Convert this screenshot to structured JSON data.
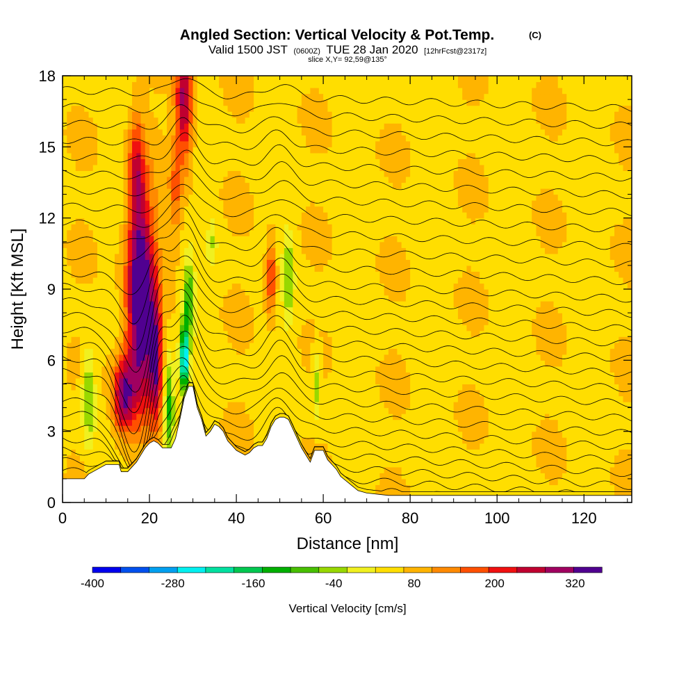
{
  "header": {
    "title_main": "Angled Section: Vertical Velocity & Pot.Temp.",
    "title_unit": "(C)",
    "valid_prefix": "Valid 1500 JST",
    "valid_zulu": "(0600Z)",
    "valid_date": "TUE 28 Jan 2020",
    "valid_fcst": "[12hrFcst@2317z]",
    "slice": "slice X,Y= 92,59@135°"
  },
  "colors": {
    "bins": [
      "#0000ee",
      "#0050ee",
      "#00a0f0",
      "#00f0f0",
      "#00e0a0",
      "#00c850",
      "#00b000",
      "#48c000",
      "#98d800",
      "#f0f020",
      "#ffde00",
      "#ffb400",
      "#ff8a00",
      "#ff5000",
      "#f01010",
      "#c00030",
      "#a00060",
      "#500090"
    ],
    "background": "#ffffff",
    "terrain": "#ffffff"
  },
  "chart_data": {
    "type": "heatmap",
    "title": "Angled Section: Vertical Velocity & Pot.Temp. (C)",
    "xlabel": "Distance [nm]",
    "ylabel": "Height [Kft MSL]",
    "xlim": [
      0,
      131
    ],
    "ylim": [
      0,
      18
    ],
    "xticks": [
      0,
      20,
      40,
      60,
      80,
      100,
      120
    ],
    "yticks": [
      0,
      3,
      6,
      9,
      12,
      15,
      18
    ],
    "colorbar": {
      "label": "Vertical Velocity [cm/s]",
      "ticks": [
        -400,
        -280,
        -160,
        -40,
        80,
        200,
        320
      ],
      "min": -400,
      "max": 360,
      "step": 40
    },
    "terrain_kft": [
      [
        0,
        1.0
      ],
      [
        5,
        1.0
      ],
      [
        6,
        1.2
      ],
      [
        7,
        1.3
      ],
      [
        9,
        1.5
      ],
      [
        10,
        1.6
      ],
      [
        13,
        1.6
      ],
      [
        13.5,
        1.3
      ],
      [
        15,
        1.3
      ],
      [
        16,
        1.5
      ],
      [
        17,
        1.7
      ],
      [
        18,
        2.0
      ],
      [
        19,
        2.3
      ],
      [
        20,
        2.5
      ],
      [
        21,
        2.6
      ],
      [
        22,
        2.5
      ],
      [
        23,
        2.3
      ],
      [
        24,
        2.3
      ],
      [
        25,
        2.3
      ],
      [
        26,
        2.7
      ],
      [
        27,
        3.5
      ],
      [
        28,
        4.4
      ],
      [
        29,
        4.9
      ],
      [
        30,
        4.9
      ],
      [
        31,
        4.0
      ],
      [
        32,
        3.5
      ],
      [
        33,
        2.8
      ],
      [
        34,
        3.0
      ],
      [
        35,
        3.3
      ],
      [
        36,
        3.2
      ],
      [
        37,
        3.0
      ],
      [
        38,
        2.6
      ],
      [
        39,
        2.4
      ],
      [
        40,
        2.2
      ],
      [
        41,
        2.1
      ],
      [
        42,
        2.0
      ],
      [
        43,
        2.1
      ],
      [
        44,
        2.3
      ],
      [
        45,
        2.4
      ],
      [
        46,
        2.4
      ],
      [
        47,
        2.7
      ],
      [
        48,
        3.2
      ],
      [
        49,
        3.5
      ],
      [
        50,
        3.6
      ],
      [
        51,
        3.6
      ],
      [
        52,
        3.5
      ],
      [
        53,
        3.1
      ],
      [
        54,
        2.7
      ],
      [
        55,
        2.3
      ],
      [
        56,
        2.0
      ],
      [
        57,
        1.7
      ],
      [
        58,
        2.2
      ],
      [
        59,
        2.2
      ],
      [
        60,
        2.2
      ],
      [
        61,
        1.8
      ],
      [
        62,
        1.6
      ],
      [
        63,
        1.4
      ],
      [
        64,
        1.1
      ],
      [
        66,
        0.8
      ],
      [
        68,
        0.5
      ],
      [
        70,
        0.4
      ],
      [
        75,
        0.3
      ],
      [
        85,
        0.3
      ],
      [
        95,
        0.3
      ],
      [
        105,
        0.3
      ],
      [
        131,
        0.3
      ]
    ],
    "contours": [
      {
        "level": 4,
        "label": "",
        "base": 1.35
      },
      {
        "level": 6,
        "label": "",
        "base": 1.75
      },
      {
        "level": 8,
        "label": "",
        "base": 2.2
      },
      {
        "level": 10,
        "label": "",
        "base": 2.7
      },
      {
        "level": 12,
        "label": "",
        "base": 3.2
      },
      {
        "level": 14,
        "label": "",
        "base": 3.75
      },
      {
        "level": 16,
        "label": "",
        "base": 4.3
      },
      {
        "level": 18,
        "label": "",
        "base": 4.9
      },
      {
        "level": 20,
        "label": "",
        "base": 5.5
      },
      {
        "level": 22,
        "label": "",
        "base": 6.1
      },
      {
        "level": 24,
        "label": "",
        "base": 6.7
      },
      {
        "level": 26,
        "label": "",
        "base": 7.3
      },
      {
        "level": 28,
        "label": "",
        "base": 7.9
      },
      {
        "level": 30,
        "label": "",
        "base": 8.5
      },
      {
        "level": 32,
        "label": "",
        "base": 9.1
      },
      {
        "level": 34,
        "label": "",
        "base": 9.7
      },
      {
        "level": 36,
        "label": "",
        "base": 10.4
      },
      {
        "level": 38,
        "label": "",
        "base": 11.1
      },
      {
        "level": 40,
        "label": "",
        "base": 11.8
      },
      {
        "level": 42,
        "label": "",
        "base": 12.5
      },
      {
        "level": 44,
        "label": "",
        "base": 13.2
      },
      {
        "level": 46,
        "label": "",
        "base": 13.9
      },
      {
        "level": 48,
        "label": "",
        "base": 14.6
      },
      {
        "level": 50,
        "label": "",
        "base": 15.3
      },
      {
        "level": 52,
        "label": "",
        "base": 16.0
      },
      {
        "level": 54,
        "label": "",
        "base": 16.7
      },
      {
        "level": 56,
        "label": "",
        "base": 17.4
      }
    ],
    "velocity_features": [
      {
        "x": 18,
        "y": 8.5,
        "sx": 3.2,
        "sy": 4.5,
        "value": 340
      },
      {
        "x": 14,
        "y": 4.5,
        "sx": 2.5,
        "sy": 1.6,
        "value": 240
      },
      {
        "x": 21.5,
        "y": 6.0,
        "sx": 1.5,
        "sy": 2.6,
        "value": 200
      },
      {
        "x": 28,
        "y": 17.0,
        "sx": 2.0,
        "sy": 2.5,
        "value": 230
      },
      {
        "x": 17,
        "y": 14.0,
        "sx": 1.8,
        "sy": 2.5,
        "value": 140
      },
      {
        "x": 26,
        "y": 13.0,
        "sx": 1.5,
        "sy": 2.0,
        "value": 90
      },
      {
        "x": 48,
        "y": 9.5,
        "sx": 1.2,
        "sy": 1.5,
        "value": 160
      },
      {
        "x": 6,
        "y": 4.5,
        "sx": 1.5,
        "sy": 2.0,
        "value": -130
      },
      {
        "x": 24.5,
        "y": 4.0,
        "sx": 1.2,
        "sy": 2.0,
        "value": -180
      },
      {
        "x": 28,
        "y": 6.0,
        "sx": 1.0,
        "sy": 1.4,
        "value": -320
      },
      {
        "x": 29,
        "y": 8.5,
        "sx": 1.2,
        "sy": 1.6,
        "value": -170
      },
      {
        "x": 52,
        "y": 9.5,
        "sx": 1.2,
        "sy": 2.0,
        "value": -110
      },
      {
        "x": 58.5,
        "y": 5.0,
        "sx": 1.0,
        "sy": 1.5,
        "value": -90
      },
      {
        "x": 34.5,
        "y": 11.0,
        "sx": 1.0,
        "sy": 1.0,
        "value": -60
      }
    ]
  }
}
